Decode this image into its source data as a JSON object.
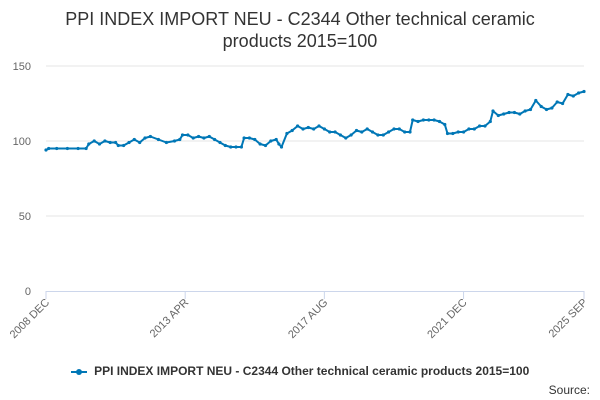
{
  "title_line1": "PPI INDEX IMPORT NEU - C2344 Other technical ceramic",
  "title_line2": "products 2015=100",
  "legend_label": "PPI INDEX IMPORT NEU - C2344 Other technical ceramic products 2015=100",
  "source_label": "Source:",
  "series_color": "#0077b6",
  "chart_data": {
    "type": "line",
    "title": "PPI INDEX IMPORT NEU - C2344 Other technical ceramic products 2015=100",
    "x_start": "2008 DEC",
    "x_end": "2025 SEP",
    "x_tick_labels": [
      "2008 DEC",
      "2013 APR",
      "2017 AUG",
      "2021 DEC",
      "2025 SEP"
    ],
    "y_ticks": [
      0,
      50,
      100,
      150
    ],
    "ylim": [
      0,
      150
    ],
    "grid": true,
    "legend_position": "bottom",
    "series": [
      {
        "name": "PPI INDEX IMPORT NEU - C2344 Other technical ceramic products 2015=100",
        "points": [
          [
            "2008-12",
            94
          ],
          [
            "2009-01",
            95
          ],
          [
            "2009-04",
            95
          ],
          [
            "2009-08",
            95
          ],
          [
            "2009-12",
            95
          ],
          [
            "2010-03",
            95
          ],
          [
            "2010-04",
            98
          ],
          [
            "2010-06",
            100
          ],
          [
            "2010-08",
            98
          ],
          [
            "2010-10",
            100
          ],
          [
            "2010-12",
            99
          ],
          [
            "2011-02",
            99
          ],
          [
            "2011-03",
            97
          ],
          [
            "2011-05",
            97
          ],
          [
            "2011-07",
            99
          ],
          [
            "2011-09",
            101
          ],
          [
            "2011-11",
            99
          ],
          [
            "2012-01",
            102
          ],
          [
            "2012-03",
            103
          ],
          [
            "2012-06",
            101
          ],
          [
            "2012-09",
            99
          ],
          [
            "2012-12",
            100
          ],
          [
            "2013-02",
            101
          ],
          [
            "2013-03",
            104
          ],
          [
            "2013-05",
            104
          ],
          [
            "2013-07",
            102
          ],
          [
            "2013-09",
            103
          ],
          [
            "2013-11",
            102
          ],
          [
            "2014-01",
            103
          ],
          [
            "2014-03",
            101
          ],
          [
            "2014-05",
            99
          ],
          [
            "2014-07",
            97
          ],
          [
            "2014-09",
            96
          ],
          [
            "2014-11",
            96
          ],
          [
            "2015-01",
            96
          ],
          [
            "2015-02",
            102
          ],
          [
            "2015-04",
            102
          ],
          [
            "2015-06",
            101
          ],
          [
            "2015-08",
            98
          ],
          [
            "2015-10",
            97
          ],
          [
            "2015-12",
            100
          ],
          [
            "2016-02",
            101
          ],
          [
            "2016-03",
            98
          ],
          [
            "2016-04",
            96
          ],
          [
            "2016-06",
            105
          ],
          [
            "2016-08",
            107
          ],
          [
            "2016-10",
            110
          ],
          [
            "2016-12",
            108
          ],
          [
            "2017-02",
            109
          ],
          [
            "2017-04",
            108
          ],
          [
            "2017-06",
            110
          ],
          [
            "2017-08",
            108
          ],
          [
            "2017-10",
            106
          ],
          [
            "2017-12",
            106
          ],
          [
            "2018-02",
            104
          ],
          [
            "2018-04",
            102
          ],
          [
            "2018-06",
            104
          ],
          [
            "2018-08",
            107
          ],
          [
            "2018-10",
            106
          ],
          [
            "2018-12",
            108
          ],
          [
            "2019-02",
            106
          ],
          [
            "2019-04",
            104
          ],
          [
            "2019-06",
            104
          ],
          [
            "2019-08",
            106
          ],
          [
            "2019-10",
            108
          ],
          [
            "2019-12",
            108
          ],
          [
            "2020-02",
            106
          ],
          [
            "2020-04",
            106
          ],
          [
            "2020-05",
            114
          ],
          [
            "2020-07",
            113
          ],
          [
            "2020-09",
            114
          ],
          [
            "2020-11",
            114
          ],
          [
            "2021-01",
            114
          ],
          [
            "2021-03",
            113
          ],
          [
            "2021-05",
            111
          ],
          [
            "2021-06",
            105
          ],
          [
            "2021-08",
            105
          ],
          [
            "2021-10",
            106
          ],
          [
            "2021-12",
            106
          ],
          [
            "2022-02",
            108
          ],
          [
            "2022-04",
            108
          ],
          [
            "2022-06",
            110
          ],
          [
            "2022-08",
            110
          ],
          [
            "2022-10",
            113
          ],
          [
            "2022-11",
            120
          ],
          [
            "2023-01",
            117
          ],
          [
            "2023-03",
            118
          ],
          [
            "2023-05",
            119
          ],
          [
            "2023-07",
            119
          ],
          [
            "2023-09",
            118
          ],
          [
            "2023-11",
            120
          ],
          [
            "2024-01",
            121
          ],
          [
            "2024-03",
            127
          ],
          [
            "2024-05",
            123
          ],
          [
            "2024-07",
            121
          ],
          [
            "2024-09",
            122
          ],
          [
            "2024-11",
            126
          ],
          [
            "2025-01",
            125
          ],
          [
            "2025-03",
            131
          ],
          [
            "2025-05",
            130
          ],
          [
            "2025-07",
            132
          ],
          [
            "2025-09",
            133
          ]
        ]
      }
    ]
  }
}
